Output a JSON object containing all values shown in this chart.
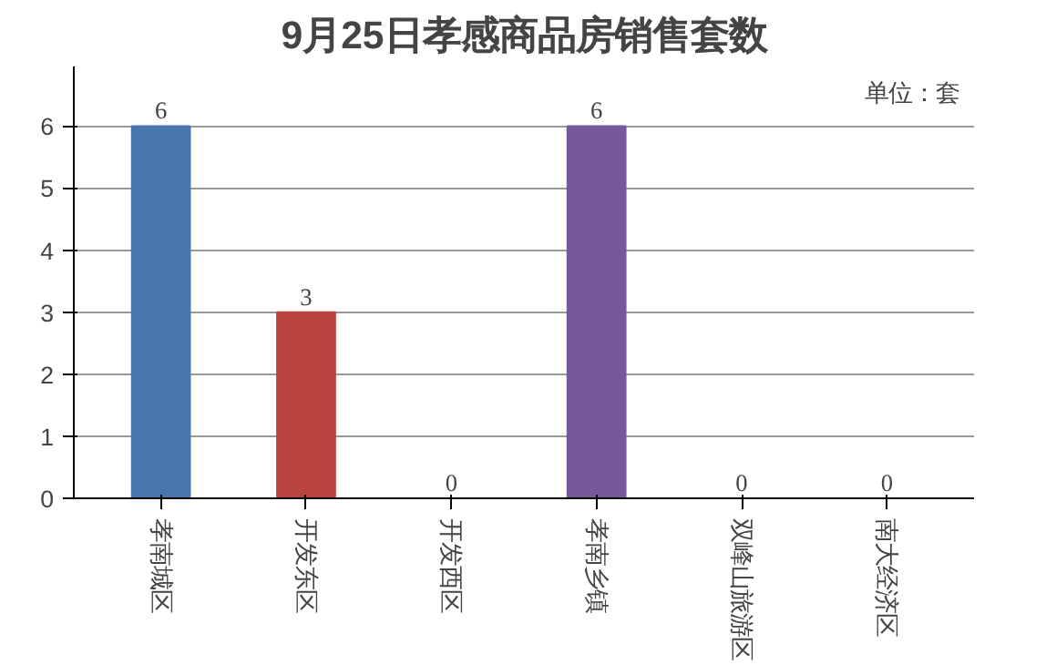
{
  "chart_data": {
    "type": "bar",
    "title": "9月25日孝感商品房销售套数",
    "annotations": [
      "单位：套"
    ],
    "categories": [
      "孝南城区",
      "开发东区",
      "开发西区",
      "孝南乡镇",
      "双峰山旅游区",
      "南大经济区"
    ],
    "values": [
      6,
      3,
      0,
      6,
      0,
      0
    ],
    "colors": [
      "#4a76b0",
      "#b8433f",
      "#8aa84a",
      "#76599a",
      "#3a98b0",
      "#e08a3a"
    ],
    "ylim": [
      0,
      6
    ],
    "yticks": [
      0,
      1,
      2,
      3,
      4,
      5,
      6
    ],
    "grid": "y",
    "data_labels": true
  }
}
